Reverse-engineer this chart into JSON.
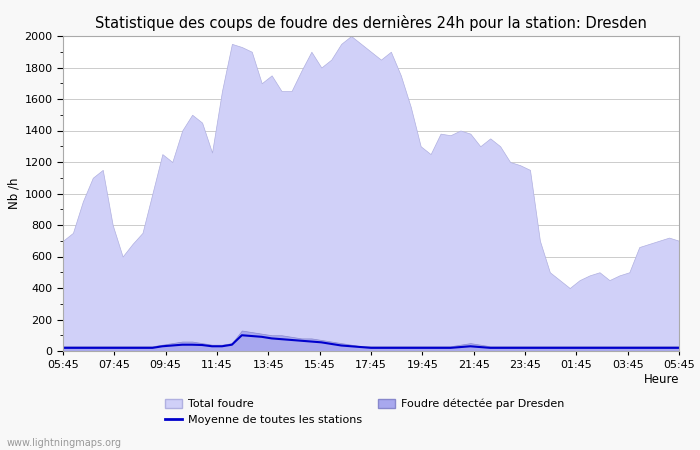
{
  "title": "Statistique des coups de foudre des dernières 24h pour la station: Dresden",
  "xlabel": "Heure",
  "ylabel": "Nb /h",
  "ylim": [
    0,
    2000
  ],
  "yticks": [
    0,
    200,
    400,
    600,
    800,
    1000,
    1200,
    1400,
    1600,
    1800,
    2000
  ],
  "xtick_labels": [
    "05:45",
    "07:45",
    "09:45",
    "11:45",
    "13:45",
    "15:45",
    "17:45",
    "19:45",
    "21:45",
    "23:45",
    "01:45",
    "03:45",
    "05:45"
  ],
  "background_color": "#f8f8f8",
  "plot_bg_color": "#ffffff",
  "grid_color": "#cccccc",
  "title_fontsize": 10.5,
  "total_foudre_color": "#d0d0f8",
  "total_foudre_edge": "#b0b0e0",
  "dresden_color": "#a8a8ee",
  "dresden_edge": "#8888cc",
  "moyenne_color": "#0000cc",
  "watermark": "www.lightningmaps.org",
  "total_foudre_data": [
    700,
    750,
    950,
    1100,
    1150,
    800,
    600,
    680,
    750,
    1000,
    1250,
    1200,
    1400,
    1500,
    1450,
    1260,
    1650,
    1950,
    1930,
    1900,
    1700,
    1750,
    1650,
    1650,
    1780,
    1900,
    1800,
    1850,
    1950,
    2000,
    1950,
    1900,
    1850,
    1900,
    1750,
    1550,
    1300,
    1250,
    1380,
    1370,
    1400,
    1380,
    1300,
    1350,
    1300,
    1200,
    1180,
    1150,
    700,
    500,
    450,
    400,
    450,
    480,
    500,
    450,
    480,
    500,
    660,
    680,
    700,
    720,
    700
  ],
  "dresden_data": [
    30,
    30,
    30,
    30,
    30,
    30,
    30,
    30,
    30,
    30,
    40,
    50,
    60,
    60,
    50,
    40,
    40,
    50,
    130,
    120,
    110,
    100,
    100,
    90,
    80,
    80,
    70,
    60,
    50,
    40,
    30,
    30,
    30,
    30,
    30,
    30,
    30,
    30,
    30,
    30,
    40,
    50,
    40,
    30,
    30,
    30,
    30,
    30,
    30,
    30,
    30,
    30,
    30,
    30,
    30,
    30,
    30,
    30,
    30,
    30,
    30,
    30,
    30
  ],
  "moyenne_data": [
    20,
    20,
    20,
    20,
    20,
    20,
    20,
    20,
    20,
    20,
    30,
    35,
    40,
    40,
    38,
    30,
    30,
    40,
    100,
    95,
    90,
    80,
    75,
    70,
    65,
    60,
    55,
    45,
    35,
    30,
    25,
    20,
    20,
    20,
    20,
    20,
    20,
    20,
    20,
    20,
    25,
    30,
    25,
    20,
    20,
    20,
    20,
    20,
    20,
    20,
    20,
    20,
    20,
    20,
    20,
    20,
    20,
    20,
    20,
    20,
    20,
    20,
    20
  ]
}
